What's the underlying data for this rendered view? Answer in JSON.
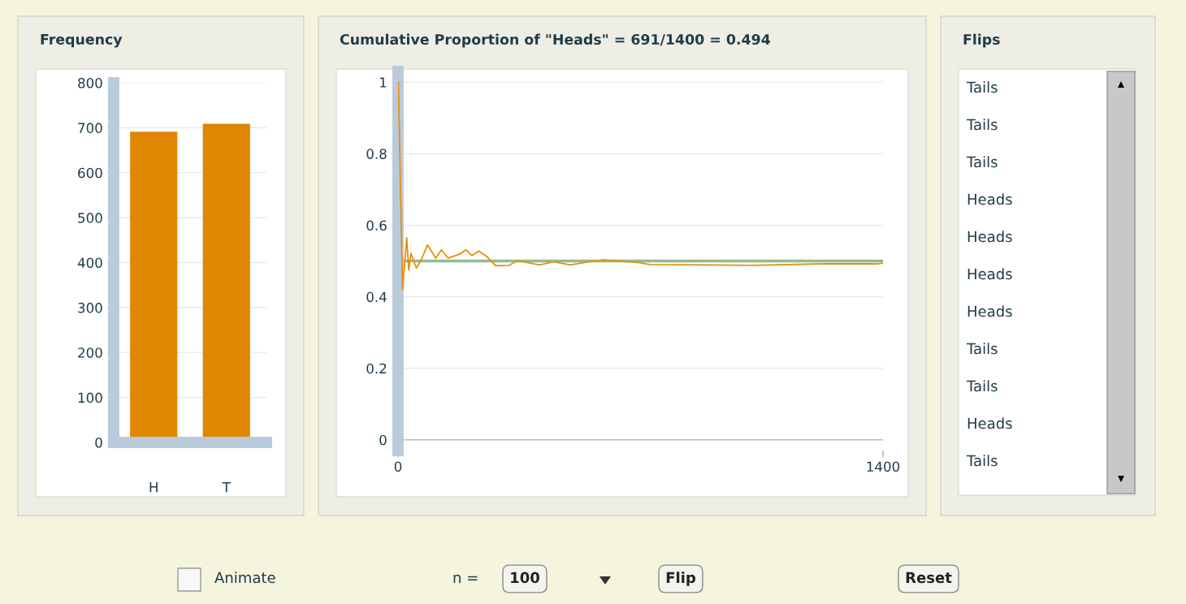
{
  "chart_data": [
    {
      "type": "bar",
      "title": "Frequency",
      "categories": [
        "H",
        "T"
      ],
      "values": [
        691,
        709
      ],
      "color": "#e08600",
      "ylim": [
        0,
        800
      ],
      "yticks": [
        0,
        100,
        200,
        300,
        400,
        500,
        600,
        700,
        800
      ],
      "grid": "y"
    },
    {
      "type": "line",
      "title": "Cumulative Proportion of \"Heads\" = 691/1400 = 0.494",
      "x": [
        1,
        13,
        25,
        31,
        37,
        53,
        69,
        85,
        109,
        125,
        145,
        177,
        197,
        213,
        233,
        257,
        281,
        321,
        345,
        409,
        449,
        497,
        545,
        593,
        697,
        727,
        903,
        1023,
        1223,
        1383,
        1400
      ],
      "series": [
        {
          "color": "#e8900c",
          "values": [
            1.0,
            0.42,
            0.565,
            0.474,
            0.522,
            0.48,
            0.508,
            0.545,
            0.508,
            0.531,
            0.508,
            0.519,
            0.531,
            0.515,
            0.528,
            0.512,
            0.487,
            0.488,
            0.501,
            0.489,
            0.498,
            0.489,
            0.497,
            0.503,
            0.495,
            0.49,
            0.489,
            0.488,
            0.492,
            0.492,
            0.494
          ]
        }
      ],
      "xlim": [
        0,
        1400
      ],
      "xticks": [
        0,
        1400
      ],
      "ylim": [
        -0.03,
        1.03
      ],
      "yticks": [
        0,
        0.2,
        0.4,
        0.6,
        0.8,
        1
      ],
      "grid": "y",
      "ref_lines": [
        {
          "axis": "y",
          "value": 0.5,
          "color": "#8fbc8f"
        }
      ]
    },
    {
      "type": "other",
      "title": "Flips",
      "annotations": [
        "Tails",
        "Tails",
        "Tails",
        "Heads",
        "Heads",
        "Heads",
        "Heads",
        "Tails",
        "Tails",
        "Heads",
        "Tails"
      ]
    },
    {
      "type": "other",
      "annotations": [
        "Animate",
        "n =",
        "100",
        "Flip",
        "Reset"
      ]
    }
  ]
}
